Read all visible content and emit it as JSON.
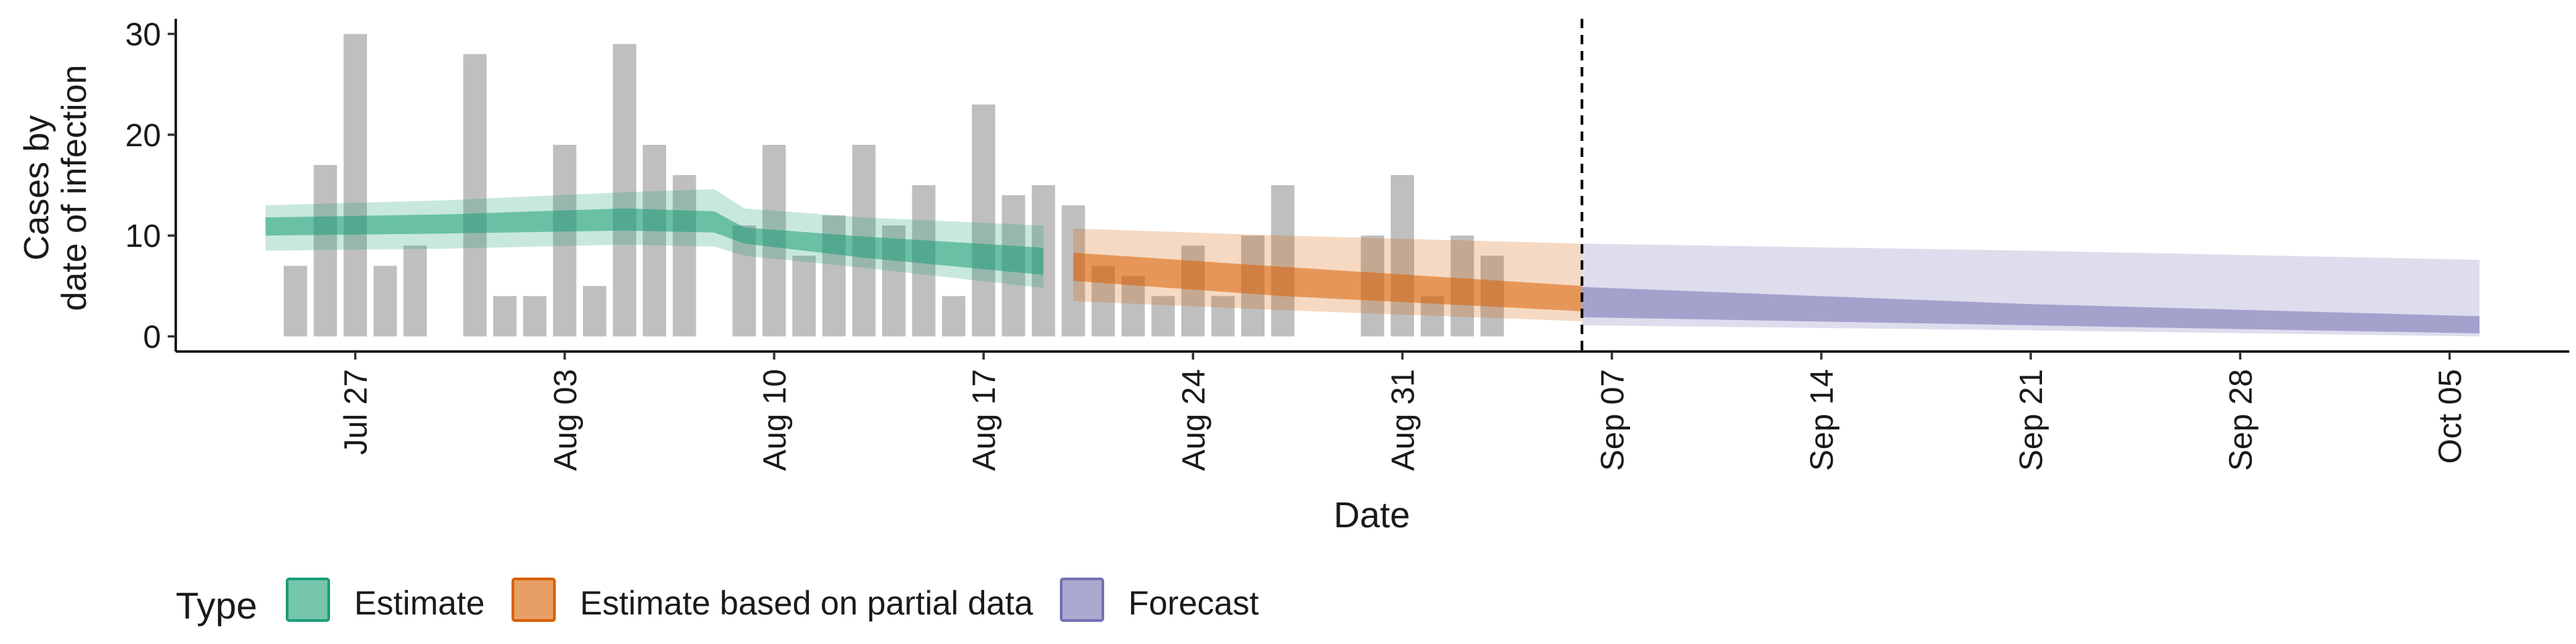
{
  "chart_data": {
    "type": "bar",
    "title": "",
    "xlabel": "Date",
    "ylabel_lines": [
      "Cases by",
      "date of infection"
    ],
    "ylim": [
      -1.5,
      31.5
    ],
    "y_ticks": [
      0,
      10,
      20,
      30
    ],
    "x_domain": [
      "2025-07-21",
      "2025-10-09"
    ],
    "x_ticks": [
      {
        "date": "2025-07-27",
        "label": "Jul 27"
      },
      {
        "date": "2025-08-03",
        "label": "Aug 03"
      },
      {
        "date": "2025-08-10",
        "label": "Aug 10"
      },
      {
        "date": "2025-08-17",
        "label": "Aug 17"
      },
      {
        "date": "2025-08-24",
        "label": "Aug 24"
      },
      {
        "date": "2025-08-31",
        "label": "Aug 31"
      },
      {
        "date": "2025-09-07",
        "label": "Sep 07"
      },
      {
        "date": "2025-09-14",
        "label": "Sep 14"
      },
      {
        "date": "2025-09-21",
        "label": "Sep 21"
      },
      {
        "date": "2025-09-28",
        "label": "Sep 28"
      },
      {
        "date": "2025-10-05",
        "label": "Oct 05"
      }
    ],
    "forecast_start": "2025-09-06",
    "grid": false,
    "legend_position": "bottom-left",
    "legend": {
      "title": "Type",
      "items": [
        {
          "label": "Estimate",
          "color": "#1b9e77"
        },
        {
          "label": "Estimate based on partial data",
          "color": "#d95f02"
        },
        {
          "label": "Forecast",
          "color": "#7570b3"
        }
      ]
    },
    "bar_color": "#bfbfbf",
    "reported_cases": [
      {
        "date": "2025-07-25",
        "value": 7
      },
      {
        "date": "2025-07-26",
        "value": 17
      },
      {
        "date": "2025-07-27",
        "value": 30
      },
      {
        "date": "2025-07-28",
        "value": 7
      },
      {
        "date": "2025-07-29",
        "value": 9
      },
      {
        "date": "2025-07-31",
        "value": 28
      },
      {
        "date": "2025-08-01",
        "value": 4
      },
      {
        "date": "2025-08-02",
        "value": 4
      },
      {
        "date": "2025-08-03",
        "value": 19
      },
      {
        "date": "2025-08-04",
        "value": 5
      },
      {
        "date": "2025-08-05",
        "value": 29
      },
      {
        "date": "2025-08-06",
        "value": 19
      },
      {
        "date": "2025-08-07",
        "value": 16
      },
      {
        "date": "2025-08-09",
        "value": 11
      },
      {
        "date": "2025-08-10",
        "value": 19
      },
      {
        "date": "2025-08-11",
        "value": 8
      },
      {
        "date": "2025-08-12",
        "value": 12
      },
      {
        "date": "2025-08-13",
        "value": 19
      },
      {
        "date": "2025-08-14",
        "value": 11
      },
      {
        "date": "2025-08-15",
        "value": 15
      },
      {
        "date": "2025-08-16",
        "value": 4
      },
      {
        "date": "2025-08-17",
        "value": 23
      },
      {
        "date": "2025-08-18",
        "value": 14
      },
      {
        "date": "2025-08-19",
        "value": 15
      },
      {
        "date": "2025-08-20",
        "value": 13
      },
      {
        "date": "2025-08-21",
        "value": 7
      },
      {
        "date": "2025-08-22",
        "value": 6
      },
      {
        "date": "2025-08-23",
        "value": 4
      },
      {
        "date": "2025-08-24",
        "value": 9
      },
      {
        "date": "2025-08-25",
        "value": 4
      },
      {
        "date": "2025-08-26",
        "value": 10
      },
      {
        "date": "2025-08-27",
        "value": 15
      },
      {
        "date": "2025-08-30",
        "value": 10
      },
      {
        "date": "2025-08-31",
        "value": 16
      },
      {
        "date": "2025-09-01",
        "value": 4
      },
      {
        "date": "2025-09-02",
        "value": 10
      },
      {
        "date": "2025-09-03",
        "value": 8
      }
    ],
    "bands": [
      {
        "type": "Estimate",
        "color": "#1b9e77",
        "points": [
          {
            "date": "2025-07-24",
            "lo90": 8.5,
            "lo50": 10.0,
            "hi50": 11.8,
            "hi90": 13.0
          },
          {
            "date": "2025-07-30",
            "lo90": 8.7,
            "lo50": 10.2,
            "hi50": 12.1,
            "hi90": 13.5
          },
          {
            "date": "2025-08-05",
            "lo90": 9.1,
            "lo50": 10.5,
            "hi50": 12.7,
            "hi90": 14.3
          },
          {
            "date": "2025-08-08",
            "lo90": 8.9,
            "lo50": 10.3,
            "hi50": 12.4,
            "hi90": 14.6
          },
          {
            "date": "2025-08-09",
            "lo90": 8.0,
            "lo50": 9.2,
            "hi50": 10.8,
            "hi90": 12.7
          },
          {
            "date": "2025-08-13",
            "lo90": 6.8,
            "lo50": 7.8,
            "hi50": 9.9,
            "hi90": 11.8
          },
          {
            "date": "2025-08-19",
            "lo90": 4.8,
            "lo50": 6.1,
            "hi50": 8.8,
            "hi90": 11.0
          }
        ]
      },
      {
        "type": "Estimate based on partial data",
        "color": "#d95f02",
        "points": [
          {
            "date": "2025-08-20",
            "lo90": 3.5,
            "lo50": 5.5,
            "hi50": 8.3,
            "hi90": 10.7
          },
          {
            "date": "2025-08-27",
            "lo90": 2.6,
            "lo50": 4.0,
            "hi50": 6.9,
            "hi90": 10.0
          },
          {
            "date": "2025-09-06",
            "lo90": 1.5,
            "lo50": 2.5,
            "hi50": 5.0,
            "hi90": 9.2
          }
        ]
      },
      {
        "type": "Forecast",
        "color": "#7570b3",
        "points": [
          {
            "date": "2025-09-06",
            "lo90": 1.1,
            "lo50": 1.9,
            "hi50": 4.9,
            "hi90": 9.2
          },
          {
            "date": "2025-09-21",
            "lo90": 0.6,
            "lo50": 1.1,
            "hi50": 3.2,
            "hi90": 8.5
          },
          {
            "date": "2025-10-06",
            "lo90": 0.0,
            "lo50": 0.3,
            "hi50": 2.0,
            "hi90": 7.6
          }
        ]
      }
    ]
  }
}
